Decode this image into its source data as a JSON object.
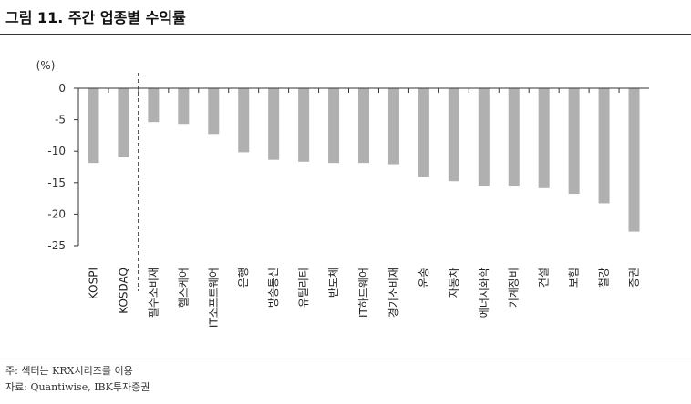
{
  "title": "그림 11. 주간 업종별 수익률",
  "chart_data": {
    "type": "bar",
    "unit_label": "(%)",
    "categories": [
      "KOSPI",
      "KOSDAQ",
      "필수소비재",
      "헬스케어",
      "IT소프트웨어",
      "은행",
      "방송통신",
      "유틸리티",
      "반도체",
      "IT하드웨어",
      "경기소비재",
      "운송",
      "자동차",
      "에너지화학",
      "기계장비",
      "건설",
      "보험",
      "철강",
      "증권"
    ],
    "values": [
      -11.8,
      -10.9,
      -5.3,
      -5.6,
      -7.2,
      -10.1,
      -11.3,
      -11.6,
      -11.8,
      -11.8,
      -12.0,
      -14.0,
      -14.7,
      -15.4,
      -15.4,
      -15.8,
      -16.7,
      -18.2,
      -22.7
    ],
    "yticks": [
      "0",
      "-5",
      "-10",
      "-15",
      "-20",
      "-25"
    ],
    "ylim": [
      -25,
      0
    ],
    "bar_color": "#b0b0b0",
    "separator_after_index": 1,
    "grid": false
  },
  "notes": {
    "note": "주: 섹터는 KRX시리즈를 이용",
    "source": "자료: Quantiwise, IBK투자증권"
  }
}
